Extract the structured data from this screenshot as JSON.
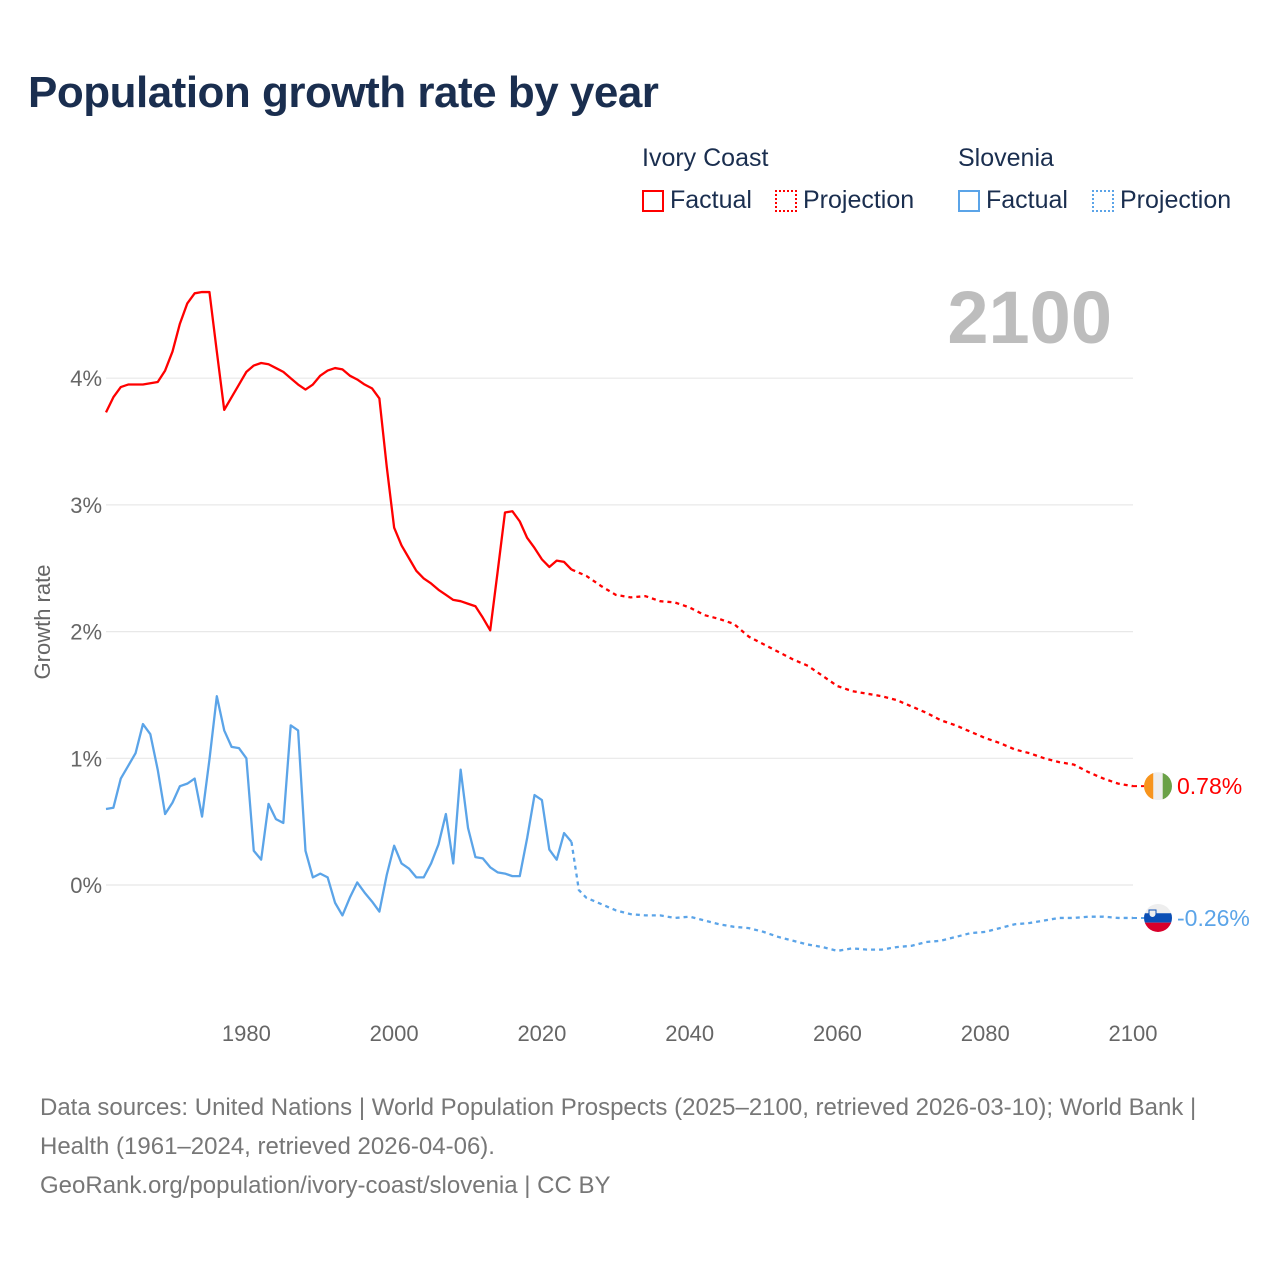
{
  "title": "Population growth rate by year",
  "year_badge": "2100",
  "legend": {
    "groups": [
      {
        "name": "Ivory Coast",
        "factual": "Factual",
        "projection": "Projection",
        "color": "#ff0000"
      },
      {
        "name": "Slovenia",
        "factual": "Factual",
        "projection": "Projection",
        "color": "#5ba4e8"
      }
    ]
  },
  "footer": {
    "sources": "Data sources: United Nations | World Population Prospects (2025–2100, retrieved 2026-03-10); World Bank | Health (1961–2024, retrieved 2026-04-06).",
    "link": "GeoRank.org/population/ivory-coast/slovenia | CC BY"
  },
  "chart_data": {
    "type": "line",
    "title": "Population growth rate by year",
    "xlabel": "",
    "ylabel": "Growth rate",
    "xlim": [
      1961,
      2100
    ],
    "ylim": [
      -1,
      4.8
    ],
    "x_ticks": [
      1980,
      2000,
      2020,
      2040,
      2060,
      2080,
      2100
    ],
    "x_tick_labels": [
      "1980",
      "2000",
      "2020",
      "2040",
      "2060",
      "2080",
      "2100"
    ],
    "y_ticks": [
      0,
      1,
      2,
      3,
      4
    ],
    "y_tick_labels": [
      "0%",
      "1%",
      "2%",
      "3%",
      "4%"
    ],
    "grid": true,
    "legend_position": "top-right",
    "series": [
      {
        "name": "Ivory Coast",
        "color": "#ff0000",
        "end_label": "0.78%",
        "flag": "ivory-coast",
        "factual": {
          "start_year": 1961,
          "values": [
            3.73,
            3.85,
            3.93,
            3.95,
            3.95,
            3.95,
            3.96,
            3.97,
            4.06,
            4.21,
            4.43,
            4.59,
            4.67,
            4.68,
            4.68,
            4.21,
            3.75,
            3.85,
            3.95,
            4.05,
            4.1,
            4.12,
            4.11,
            4.08,
            4.05,
            4.0,
            3.95,
            3.91,
            3.95,
            4.02,
            4.06,
            4.08,
            4.07,
            4.02,
            3.99,
            3.95,
            3.92,
            3.84,
            3.3,
            2.82,
            2.68,
            2.58,
            2.48,
            2.42,
            2.38,
            2.33,
            2.29,
            2.25,
            2.24,
            2.22,
            2.2,
            2.11,
            2.01,
            2.47,
            2.94,
            2.95,
            2.87,
            2.74,
            2.66,
            2.57,
            2.51,
            2.56,
            2.55,
            2.49
          ]
        },
        "projection": {
          "x": [
            2024,
            2026,
            2028,
            2030,
            2032,
            2034,
            2036,
            2038,
            2040,
            2042,
            2044,
            2046,
            2048,
            2050,
            2052,
            2054,
            2056,
            2058,
            2060,
            2062,
            2064,
            2066,
            2068,
            2070,
            2072,
            2074,
            2076,
            2078,
            2080,
            2082,
            2084,
            2086,
            2088,
            2090,
            2092,
            2094,
            2096,
            2098,
            2100
          ],
          "values": [
            2.49,
            2.44,
            2.36,
            2.29,
            2.27,
            2.28,
            2.24,
            2.23,
            2.19,
            2.13,
            2.1,
            2.06,
            1.96,
            1.9,
            1.84,
            1.78,
            1.73,
            1.65,
            1.57,
            1.53,
            1.51,
            1.49,
            1.46,
            1.41,
            1.36,
            1.3,
            1.26,
            1.21,
            1.16,
            1.12,
            1.07,
            1.04,
            1.0,
            0.97,
            0.95,
            0.89,
            0.84,
            0.8,
            0.78
          ]
        }
      },
      {
        "name": "Slovenia",
        "color": "#5ba4e8",
        "end_label": "-0.26%",
        "flag": "slovenia",
        "factual": {
          "start_year": 1961,
          "values": [
            0.6,
            0.61,
            0.84,
            0.94,
            1.04,
            1.27,
            1.19,
            0.91,
            0.56,
            0.65,
            0.78,
            0.8,
            0.84,
            0.54,
            0.99,
            1.49,
            1.22,
            1.09,
            1.08,
            1.0,
            0.27,
            0.2,
            0.64,
            0.52,
            0.49,
            1.26,
            1.22,
            0.27,
            0.06,
            0.09,
            0.06,
            -0.14,
            -0.24,
            -0.1,
            0.02,
            -0.06,
            -0.13,
            -0.21,
            0.08,
            0.31,
            0.17,
            0.13,
            0.06,
            0.06,
            0.17,
            0.32,
            0.56,
            0.17,
            0.91,
            0.45,
            0.22,
            0.21,
            0.14,
            0.1,
            0.09,
            0.07,
            0.07,
            0.37,
            0.71,
            0.67,
            0.28,
            0.2,
            0.41,
            0.34
          ]
        },
        "projection": {
          "x": [
            2024,
            2025,
            2026,
            2028,
            2030,
            2032,
            2034,
            2036,
            2038,
            2040,
            2042,
            2044,
            2046,
            2048,
            2050,
            2052,
            2054,
            2056,
            2058,
            2060,
            2062,
            2064,
            2066,
            2068,
            2070,
            2072,
            2074,
            2076,
            2078,
            2080,
            2082,
            2084,
            2086,
            2088,
            2090,
            2092,
            2094,
            2096,
            2098,
            2100
          ],
          "values": [
            0.34,
            -0.04,
            -0.1,
            -0.15,
            -0.2,
            -0.23,
            -0.24,
            -0.24,
            -0.26,
            -0.25,
            -0.28,
            -0.31,
            -0.33,
            -0.34,
            -0.37,
            -0.41,
            -0.44,
            -0.47,
            -0.49,
            -0.52,
            -0.5,
            -0.51,
            -0.51,
            -0.49,
            -0.48,
            -0.45,
            -0.44,
            -0.41,
            -0.38,
            -0.37,
            -0.34,
            -0.31,
            -0.3,
            -0.28,
            -0.26,
            -0.26,
            -0.25,
            -0.25,
            -0.26,
            -0.26
          ]
        }
      }
    ]
  }
}
